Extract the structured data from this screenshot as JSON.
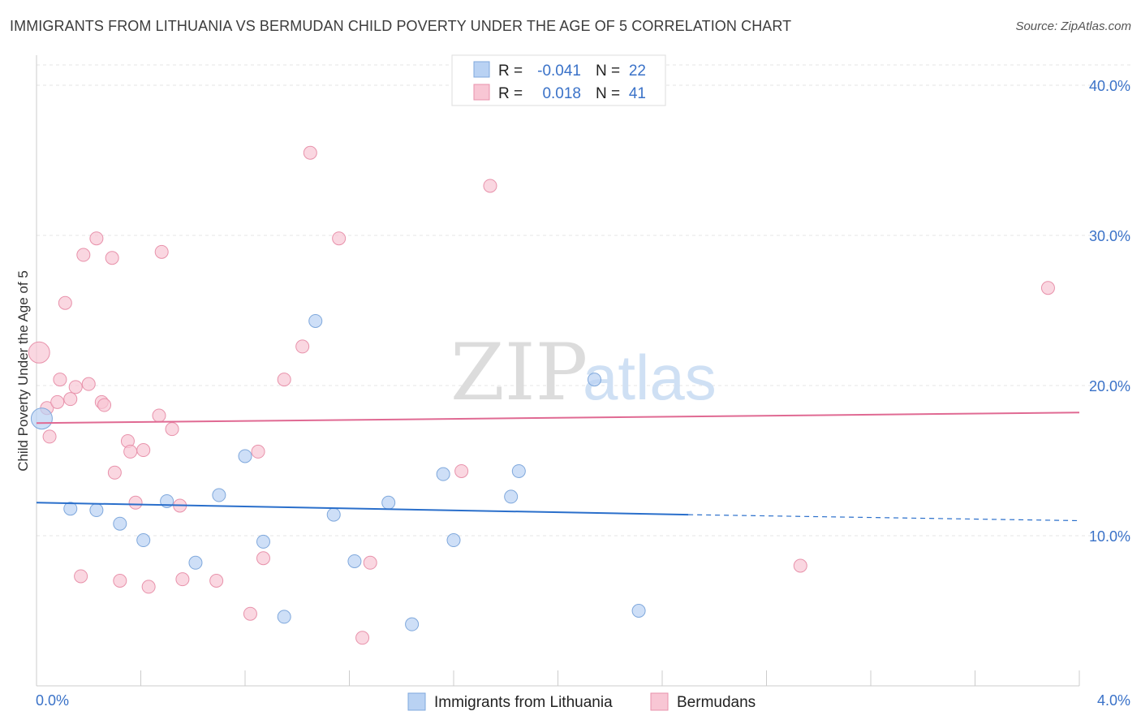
{
  "header": {
    "title": "IMMIGRANTS FROM LITHUANIA VS BERMUDAN CHILD POVERTY UNDER THE AGE OF 5 CORRELATION CHART",
    "source": "Source: ZipAtlas.com"
  },
  "watermark": {
    "zip": "ZIP",
    "atlas": "atlas"
  },
  "legend": {
    "rows": [
      {
        "r_label": "R =",
        "r_value": "-0.041",
        "n_label": "N =",
        "n_value": "22"
      },
      {
        "r_label": "R =",
        "r_value": "0.018",
        "n_label": "N =",
        "n_value": "41"
      }
    ]
  },
  "bottom_legend": {
    "items": [
      "Immigrants from Lithuania",
      "Bermudans"
    ]
  },
  "chart_data": {
    "type": "scatter",
    "title": "IMMIGRANTS FROM LITHUANIA VS BERMUDAN CHILD POVERTY UNDER THE AGE OF 5 CORRELATION CHART",
    "xlabel": "",
    "ylabel": "Child Poverty Under the Age of 5",
    "xlim": [
      0,
      4
    ],
    "ylim": [
      0,
      42
    ],
    "x_tick_labels": [
      "0.0%",
      "4.0%"
    ],
    "y_ticks": [
      10,
      20,
      30,
      40
    ],
    "y_tick_labels": [
      "10.0%",
      "20.0%",
      "30.0%",
      "40.0%"
    ],
    "grid": true,
    "legend_position": "top-center",
    "colors": {
      "lithuania_fill": "#b9d2f3",
      "lithuania_stroke": "#7fa8dc",
      "lithuania_line": "#2a6fcb",
      "bermudan_fill": "#f8c6d4",
      "bermudan_stroke": "#e892ab",
      "bermudan_line": "#e06a93",
      "tick": "#3a72c8"
    },
    "series": [
      {
        "name": "Immigrants from Lithuania",
        "points": [
          [
            0.02,
            17.8
          ],
          [
            0.13,
            11.8
          ],
          [
            0.23,
            11.7
          ],
          [
            0.32,
            10.8
          ],
          [
            0.41,
            9.7
          ],
          [
            0.5,
            12.3
          ],
          [
            0.61,
            8.2
          ],
          [
            0.7,
            12.7
          ],
          [
            0.8,
            15.3
          ],
          [
            0.87,
            9.6
          ],
          [
            0.95,
            4.6
          ],
          [
            1.07,
            24.3
          ],
          [
            1.14,
            11.4
          ],
          [
            1.22,
            8.3
          ],
          [
            1.35,
            12.2
          ],
          [
            1.44,
            4.1
          ],
          [
            1.56,
            14.1
          ],
          [
            1.6,
            9.7
          ],
          [
            1.82,
            12.6
          ],
          [
            1.85,
            14.3
          ],
          [
            2.14,
            20.4
          ],
          [
            2.31,
            5.0
          ]
        ],
        "trend": {
          "x0": 0,
          "y0": 12.2,
          "x1": 2.5,
          "y1": 11.4,
          "dash_to_x": 4,
          "dash_to_y": 11.0
        }
      },
      {
        "name": "Bermudans",
        "points": [
          [
            0.01,
            22.2
          ],
          [
            0.04,
            18.5
          ],
          [
            0.05,
            16.6
          ],
          [
            0.08,
            18.9
          ],
          [
            0.09,
            20.4
          ],
          [
            0.11,
            25.5
          ],
          [
            0.13,
            19.1
          ],
          [
            0.15,
            19.9
          ],
          [
            0.17,
            7.3
          ],
          [
            0.18,
            28.7
          ],
          [
            0.2,
            20.1
          ],
          [
            0.23,
            29.8
          ],
          [
            0.25,
            18.9
          ],
          [
            0.26,
            18.7
          ],
          [
            0.29,
            28.5
          ],
          [
            0.3,
            14.2
          ],
          [
            0.32,
            7.0
          ],
          [
            0.35,
            16.3
          ],
          [
            0.36,
            15.6
          ],
          [
            0.38,
            12.2
          ],
          [
            0.41,
            15.7
          ],
          [
            0.43,
            6.6
          ],
          [
            0.47,
            18.0
          ],
          [
            0.48,
            28.9
          ],
          [
            0.52,
            17.1
          ],
          [
            0.55,
            12.0
          ],
          [
            0.56,
            7.1
          ],
          [
            0.69,
            7.0
          ],
          [
            0.82,
            4.8
          ],
          [
            0.85,
            15.6
          ],
          [
            0.87,
            8.5
          ],
          [
            0.95,
            20.4
          ],
          [
            1.02,
            22.6
          ],
          [
            1.05,
            35.5
          ],
          [
            1.16,
            29.8
          ],
          [
            1.25,
            3.2
          ],
          [
            1.28,
            8.2
          ],
          [
            1.63,
            14.3
          ],
          [
            1.74,
            33.3
          ],
          [
            2.93,
            8.0
          ],
          [
            3.88,
            26.5
          ]
        ],
        "trend": {
          "x0": 0,
          "y0": 17.5,
          "x1": 4,
          "y1": 18.2
        }
      }
    ]
  }
}
